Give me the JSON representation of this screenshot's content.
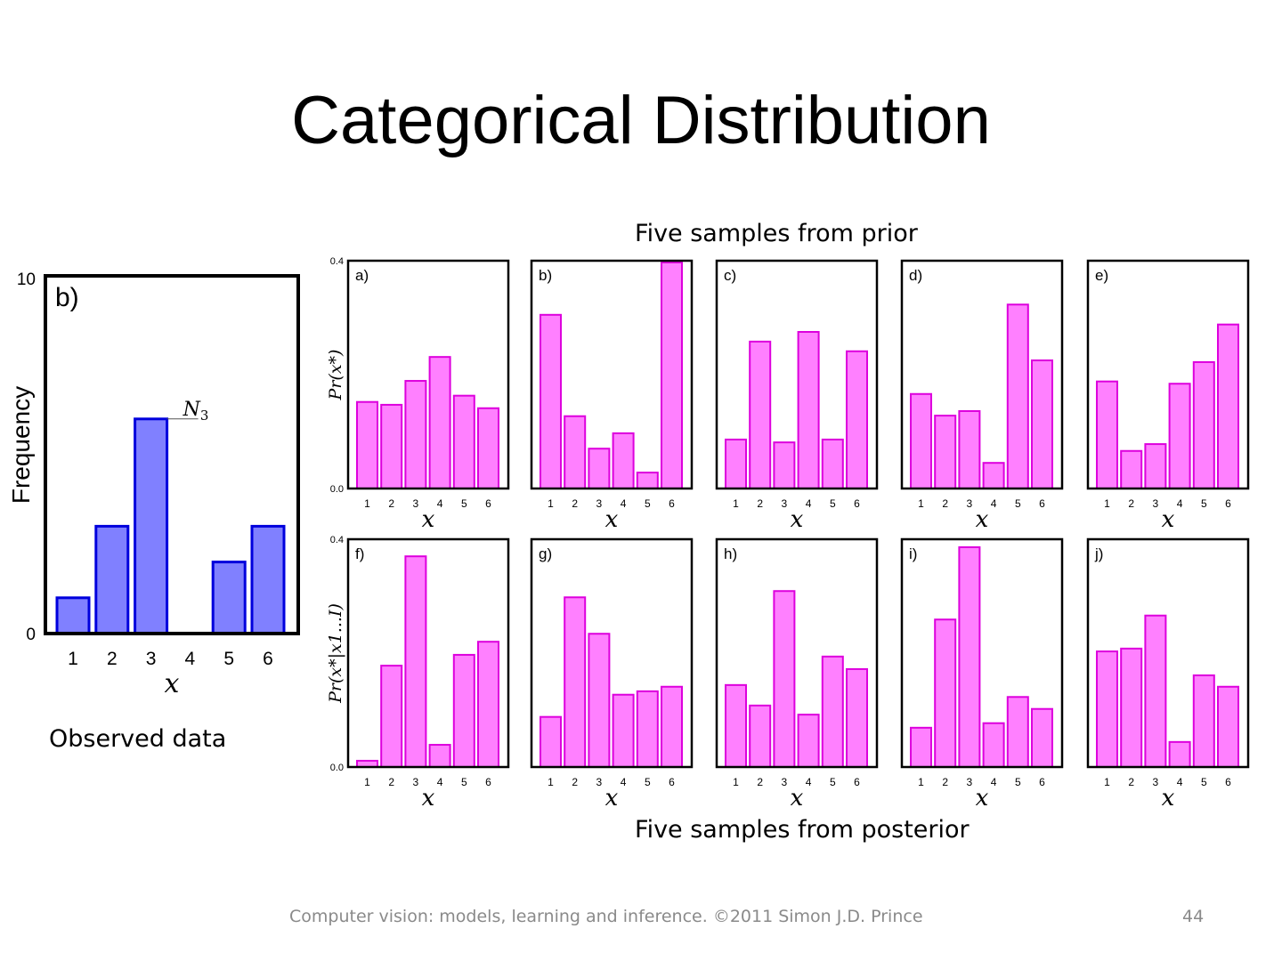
{
  "slide": {
    "title": "Categorical Distribution",
    "prior_caption": "Five samples from prior",
    "posterior_caption": "Five samples from posterior",
    "observed_caption": "Observed data",
    "footer_text": "Computer vision: models, learning and inference.  ©2011 Simon J.D. Prince",
    "page_number": "44"
  },
  "colors": {
    "observed_fill": "#8080ff",
    "observed_stroke": "#0000dd",
    "sample_fill": "#ff80ff",
    "sample_stroke": "#dd00dd",
    "frame": "#000000"
  },
  "chart_data": [
    {
      "type": "bar",
      "id": "observed",
      "panel_label": "b)",
      "categories": [
        "1",
        "2",
        "3",
        "4",
        "5",
        "6"
      ],
      "values": [
        1,
        3,
        6,
        0,
        2,
        3
      ],
      "xlabel": "x",
      "ylabel": "Frequency",
      "ylim": [
        0,
        10
      ],
      "yticks": [
        "0",
        "10"
      ],
      "annotation": {
        "text": "N3",
        "category": "3"
      }
    },
    {
      "type": "bar",
      "id": "prior",
      "group_title": "Five samples from prior",
      "ylabel": "Pr(x*)",
      "ylim": [
        0,
        0.4
      ],
      "yticks": [
        "0.0",
        "0.4"
      ],
      "xlabel": "x",
      "categories": [
        "1",
        "2",
        "3",
        "4",
        "5",
        "6"
      ],
      "series": [
        {
          "name": "a)",
          "values": [
            0.152,
            0.147,
            0.189,
            0.231,
            0.163,
            0.141
          ]
        },
        {
          "name": "b)",
          "values": [
            0.305,
            0.127,
            0.07,
            0.097,
            0.028,
            0.397
          ]
        },
        {
          "name": "c)",
          "values": [
            0.086,
            0.258,
            0.081,
            0.275,
            0.086,
            0.241
          ]
        },
        {
          "name": "d)",
          "values": [
            0.166,
            0.128,
            0.136,
            0.045,
            0.323,
            0.225
          ]
        },
        {
          "name": "e)",
          "values": [
            0.188,
            0.066,
            0.078,
            0.184,
            0.222,
            0.288
          ]
        }
      ]
    },
    {
      "type": "bar",
      "id": "posterior",
      "group_title": "Five samples from posterior",
      "ylabel": "Pr(x*|x1...I)",
      "ylim": [
        0,
        0.4
      ],
      "yticks": [
        "0.0",
        "0.4"
      ],
      "xlabel": "x",
      "categories": [
        "1",
        "2",
        "3",
        "4",
        "5",
        "6"
      ],
      "series": [
        {
          "name": "f)",
          "values": [
            0.011,
            0.178,
            0.37,
            0.039,
            0.197,
            0.22
          ]
        },
        {
          "name": "g)",
          "values": [
            0.088,
            0.298,
            0.234,
            0.127,
            0.133,
            0.141
          ]
        },
        {
          "name": "h)",
          "values": [
            0.144,
            0.108,
            0.309,
            0.092,
            0.194,
            0.172
          ]
        },
        {
          "name": "i)",
          "values": [
            0.069,
            0.259,
            0.386,
            0.077,
            0.123,
            0.102
          ]
        },
        {
          "name": "j)",
          "values": [
            0.203,
            0.208,
            0.266,
            0.044,
            0.161,
            0.141
          ]
        }
      ]
    }
  ]
}
